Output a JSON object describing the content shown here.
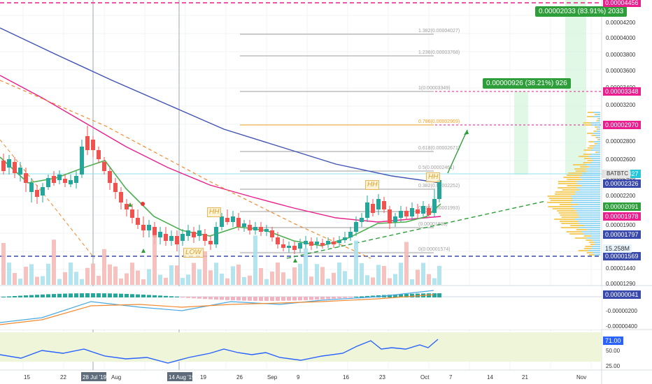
{
  "chart": {
    "symbol_tag": "BATBTC",
    "volume_label": "15.258M",
    "rsi_label": "71.00",
    "macd_tags": [
      "0.00000041"
    ]
  },
  "price_scale": {
    "ticks": [
      "0.00004200",
      "0.00004000",
      "0.00003800",
      "0.00003600",
      "0.00003400",
      "0.00003200",
      "0.00002800",
      "0.00002600",
      "0.00002400",
      "0.00002200",
      "0.00001900",
      "0.00001700",
      "0.00001440",
      "0.00001290"
    ],
    "tags": [
      {
        "text": "0.00004456",
        "color": "#e91e8c"
      },
      {
        "text": "0.00003348",
        "color": "#e91e8c"
      },
      {
        "text": "0.00002970",
        "color": "#e91e8c"
      },
      {
        "text": "0.00002427",
        "color": "#26c6da"
      },
      {
        "text": "0.00002326",
        "color": "#3949ab"
      },
      {
        "text": "0.00002091",
        "color": "#2e9e3a"
      },
      {
        "text": "0.00001978",
        "color": "#e91e8c"
      },
      {
        "text": "0.00001797",
        "color": "#3949ab"
      },
      {
        "text": "0.00001569",
        "color": "#3949ab"
      }
    ]
  },
  "macd_scale": {
    "ticks": [
      "-0.00000200",
      "-0.00000400"
    ]
  },
  "rsi_scale": {
    "ticks": [
      "50.00",
      "25.00"
    ]
  },
  "time_axis": {
    "labels": [
      "15",
      "22",
      "28 Jul '19",
      "Aug",
      "14 Aug '19",
      "19",
      "26",
      "Sep",
      "9",
      "16",
      "23",
      "Oct",
      "7",
      "14",
      "21",
      "Nov"
    ]
  },
  "fib_levels": [
    {
      "label": "1.382(0.00004027)",
      "color": "#9e9e9e"
    },
    {
      "label": "1.236(0.00003768)",
      "color": "#9e9e9e"
    },
    {
      "label": "1(0.00003349)",
      "color": "#9e9e9e"
    },
    {
      "label": "0.786(0.00002969)",
      "color": "#f2a11f"
    },
    {
      "label": "0.618(0.00002671)",
      "color": "#9e9e9e"
    },
    {
      "label": "0.5(0.00002461)",
      "color": "#9e9e9e"
    },
    {
      "label": "0.382(0.00002252)",
      "color": "#9e9e9e"
    },
    {
      "label": "0.236(0.00001993)",
      "color": "#9e9e9e"
    },
    {
      "label": "(0.00001836)",
      "color": "#9e9e9e"
    },
    {
      "label": "0(0.00001574)",
      "color": "#9e9e9e"
    }
  ],
  "callouts": [
    {
      "text": "0.00002033 (83.91%) 2033"
    },
    {
      "text": "0.00000926 (38.21%) 926"
    }
  ],
  "wave_labels": [
    "HH",
    "HH",
    "HH",
    "LOW"
  ],
  "colors": {
    "up": "#26a69a",
    "down": "#ef5350",
    "ema_fast": "#4caf50",
    "ema_mid": "#e91e8c",
    "ema_slow": "#3f51b5",
    "rsi": "#2962ff",
    "rsi_band": "#eef5d8"
  }
}
